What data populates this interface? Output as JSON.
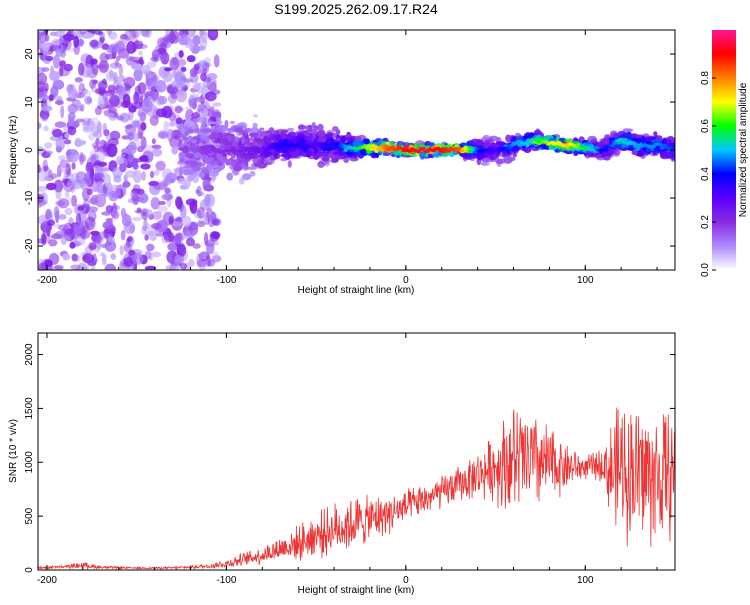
{
  "title": "S199.2025.262.09.17.R24",
  "chart_data": [
    {
      "type": "heatmap",
      "name": "spectrogram",
      "xlabel": "Height of straight line (km)",
      "ylabel": "Frequency (Hz)",
      "xlim": [
        -205,
        150
      ],
      "ylim": [
        -25,
        25
      ],
      "x_ticks": [
        -200,
        -100,
        0,
        100
      ],
      "y_ticks": [
        -20,
        -10,
        0,
        10,
        20
      ],
      "colorbar": {
        "label": "Normalized spectral amplitude",
        "range": [
          0,
          1
        ],
        "ticks": [
          0.0,
          0.2,
          0.4,
          0.6,
          0.8
        ],
        "tick_labels": [
          "0.0",
          "0.2",
          "0.4",
          "0.6",
          "0.8"
        ],
        "colors": [
          "#ffffff",
          "#ac8aff",
          "#8a2be2",
          "#5a00ff",
          "#0000ff",
          "#00c8ff",
          "#00ff00",
          "#ffff00",
          "#ff8000",
          "#ff0000",
          "#ff1493"
        ]
      },
      "ridge": {
        "x": [
          -120,
          -110,
          -100,
          -90,
          -80,
          -70,
          -60,
          -50,
          -40,
          -30,
          -20,
          -10,
          0,
          10,
          20,
          30,
          40,
          50,
          60,
          70,
          80,
          90,
          100,
          110,
          120,
          130,
          140,
          150
        ],
        "center_hz": [
          0,
          0,
          0,
          0,
          0,
          1,
          1,
          1,
          1,
          0.5,
          0.5,
          0.5,
          0,
          0,
          0,
          0,
          0,
          0,
          1,
          2,
          1.5,
          1,
          0.5,
          0,
          2,
          1,
          1,
          0
        ],
        "amplitude": [
          0.15,
          0.18,
          0.2,
          0.22,
          0.25,
          0.35,
          0.35,
          0.3,
          0.35,
          0.5,
          0.65,
          0.8,
          0.85,
          0.9,
          0.85,
          0.8,
          0.4,
          0.3,
          0.45,
          0.5,
          0.65,
          0.7,
          0.55,
          0.35,
          0.5,
          0.45,
          0.45,
          0.4
        ],
        "spread_hz": [
          10,
          9,
          9,
          8,
          7,
          5,
          5,
          6,
          5,
          3,
          2,
          2,
          1.5,
          1.5,
          1.5,
          1.5,
          3,
          4,
          3,
          2.5,
          2,
          2,
          2,
          3,
          3,
          3,
          3,
          3
        ]
      },
      "noise_region": {
        "x_range": [
          -205,
          -120
        ],
        "freq_range_hz": [
          -25,
          25
        ],
        "amplitude": 0.15
      }
    },
    {
      "type": "line",
      "name": "snr",
      "xlabel": "Height of straight line (km)",
      "ylabel": "SNR (10 * v/v)",
      "xlim": [
        -205,
        150
      ],
      "ylim": [
        0,
        2200
      ],
      "x_ticks": [
        -200,
        -100,
        0,
        100
      ],
      "y_ticks": [
        0,
        500,
        1000,
        1500,
        2000
      ],
      "color": "#ee3333",
      "envelope": {
        "x": [
          -205,
          -190,
          -180,
          -170,
          -150,
          -130,
          -110,
          -100,
          -90,
          -80,
          -70,
          -60,
          -50,
          -40,
          -30,
          -20,
          -10,
          0,
          10,
          20,
          30,
          40,
          50,
          55,
          60,
          70,
          80,
          90,
          100,
          110,
          115,
          120,
          130,
          140,
          150
        ],
        "mean": [
          20,
          30,
          45,
          25,
          18,
          20,
          35,
          60,
          100,
          140,
          200,
          250,
          320,
          380,
          430,
          470,
          520,
          580,
          650,
          720,
          800,
          880,
          960,
          1000,
          1020,
          1010,
          980,
          960,
          950,
          980,
          900,
          950,
          900,
          850,
          900
        ],
        "jitter": [
          10,
          15,
          30,
          12,
          8,
          10,
          20,
          40,
          60,
          80,
          110,
          150,
          200,
          220,
          250,
          200,
          180,
          150,
          140,
          150,
          160,
          200,
          300,
          450,
          500,
          450,
          350,
          200,
          100,
          150,
          500,
          600,
          650,
          600,
          550
        ]
      }
    }
  ]
}
